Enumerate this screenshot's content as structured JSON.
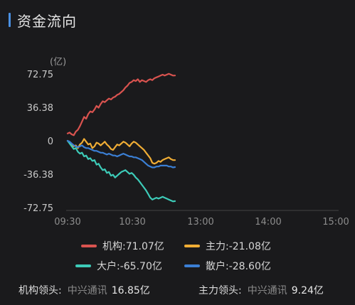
{
  "header": {
    "title": "资金流向"
  },
  "chart_data": {
    "type": "line",
    "unit_label": "(亿)",
    "x_ticks": [
      "09:30",
      "10:30",
      "13:00",
      "14:00",
      "15:00"
    ],
    "y_ticks": [
      "72.75",
      "36.38",
      "0",
      "-36.38",
      "-72.75"
    ],
    "ylim": [
      -72.75,
      72.75
    ],
    "grid": false,
    "legend_placement": "bottom",
    "series": [
      {
        "name": "机构",
        "legend_label": "机构:71.07亿",
        "color": "#d9534f",
        "values": [
          8,
          9,
          7,
          6,
          10,
          12,
          16,
          21,
          26,
          24,
          29,
          32,
          31,
          34,
          38,
          36,
          40,
          43,
          42,
          44,
          46,
          45,
          47,
          48,
          50,
          51,
          53,
          55,
          58,
          60,
          63,
          64,
          66,
          65,
          67,
          64,
          66,
          65,
          64,
          66,
          67,
          66,
          68,
          69,
          70,
          71,
          72,
          71,
          72,
          73,
          72,
          71,
          71.07
        ]
      },
      {
        "name": "主力",
        "legend_label": "主力:-21.08亿",
        "color": "#f0ad35",
        "values": [
          0,
          -2,
          -4,
          -6,
          -5,
          -8,
          -4,
          -2,
          2,
          -1,
          -4,
          -3,
          -8,
          -6,
          -2,
          -3,
          -5,
          -3,
          -1,
          -4,
          -6,
          -9,
          -10,
          -7,
          -4,
          -5,
          -3,
          -1,
          -2,
          -4,
          -6,
          -3,
          -1,
          -2,
          -4,
          -6,
          -8,
          -10,
          -13,
          -16,
          -19,
          -24,
          -25,
          -24,
          -22,
          -23,
          -21,
          -20,
          -19,
          -18,
          -20,
          -21,
          -21.08
        ]
      },
      {
        "name": "大户",
        "legend_label": "大户:-65.70亿",
        "color": "#3dcbb8",
        "values": [
          0,
          -3,
          -6,
          -9,
          -8,
          -12,
          -14,
          -13,
          -17,
          -16,
          -20,
          -19,
          -22,
          -21,
          -26,
          -25,
          -29,
          -32,
          -31,
          -35,
          -34,
          -38,
          -37,
          -40,
          -38,
          -36,
          -34,
          -33,
          -32,
          -34,
          -36,
          -35,
          -37,
          -40,
          -42,
          -45,
          -48,
          -51,
          -54,
          -58,
          -62,
          -64,
          -63,
          -62,
          -63,
          -62,
          -61,
          -62,
          -63,
          -64,
          -65,
          -66,
          -65.7
        ]
      },
      {
        "name": "散户",
        "legend_label": "散户:-28.60亿",
        "color": "#3b7fd4",
        "values": [
          0,
          -1,
          -3,
          -5,
          -6,
          -7,
          -6,
          -5,
          -7,
          -8,
          -8,
          -9,
          -10,
          -11,
          -11,
          -12,
          -13,
          -13,
          -14,
          -15,
          -14,
          -15,
          -16,
          -16,
          -17,
          -16,
          -15,
          -14,
          -15,
          -16,
          -17,
          -17,
          -18,
          -18,
          -19,
          -20,
          -21,
          -23,
          -25,
          -27,
          -28,
          -29,
          -29,
          -28,
          -28,
          -27,
          -27,
          -27,
          -27,
          -28,
          -28,
          -29,
          -28.6
        ]
      }
    ]
  },
  "footer": {
    "institution_lead_label": "机构领头:",
    "institution_lead_name": "中兴通讯",
    "institution_lead_value": "16.85亿",
    "main_lead_label": "主力领头:",
    "main_lead_name": "中兴通讯",
    "main_lead_value": "9.24亿"
  }
}
